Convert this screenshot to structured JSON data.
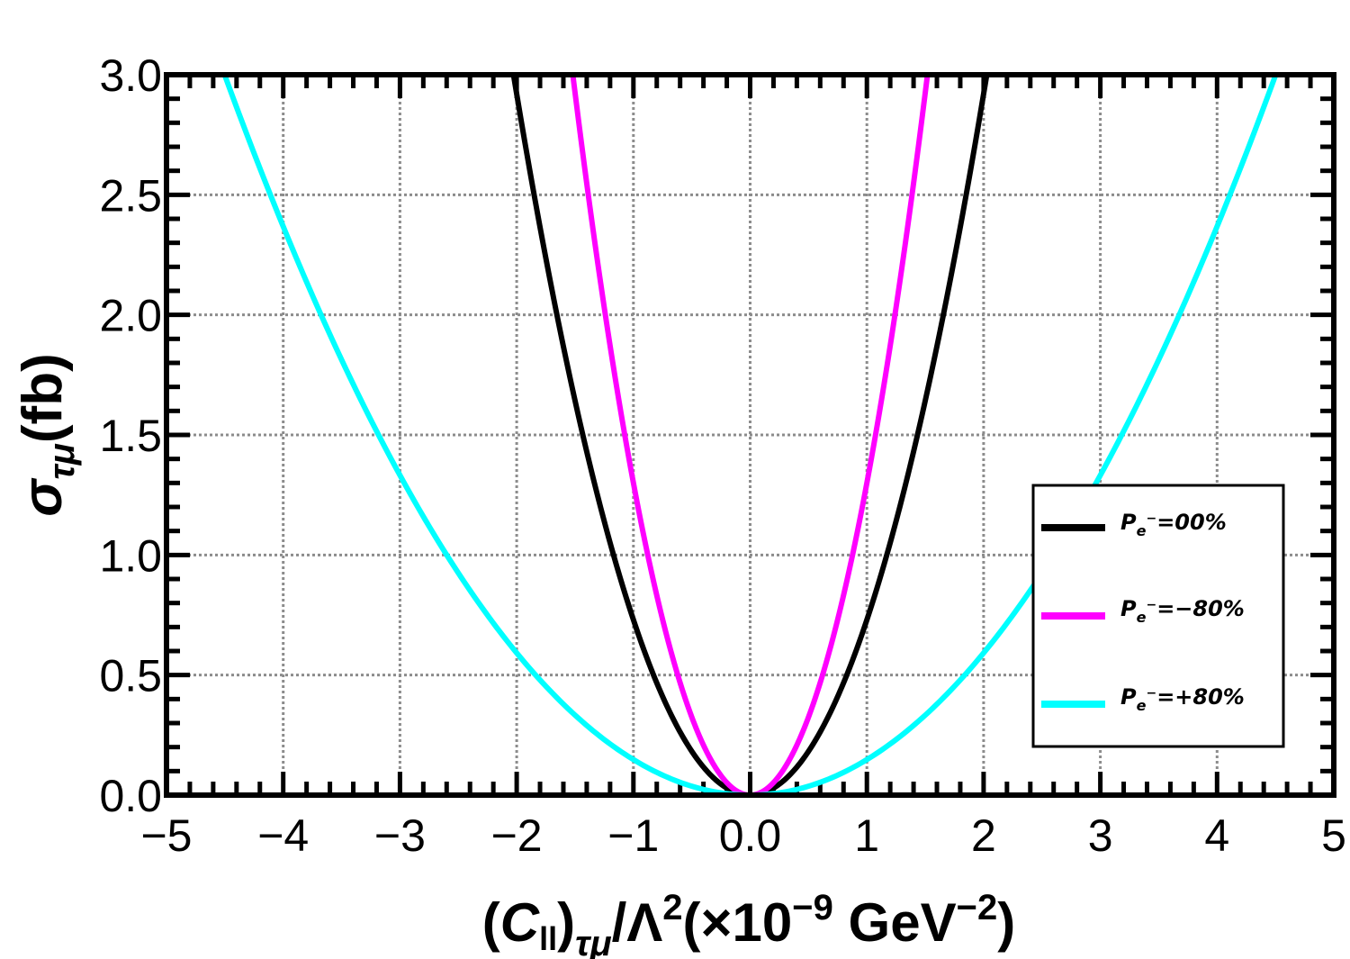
{
  "chart_data": {
    "type": "line",
    "xlim": [
      -5,
      5
    ],
    "ylim": [
      0,
      3.0
    ],
    "x_ticks": [
      -5,
      -4,
      -3,
      -2,
      -1,
      0,
      1,
      2,
      3,
      4,
      5
    ],
    "x_tick_labels": [
      "−5",
      "−4",
      "−3",
      "−2",
      "−1",
      "0.0",
      "1",
      "2",
      "3",
      "4",
      "5"
    ],
    "y_ticks": [
      0,
      0.5,
      1.0,
      1.5,
      2.0,
      2.5,
      3.0
    ],
    "y_tick_labels": [
      "0.0",
      "0.5",
      "1.0",
      "1.5",
      "2.0",
      "2.5",
      "3.0"
    ],
    "grid": true,
    "legend_position": "right",
    "xlabel": "(C_ll)_τμ/Λ^2(×10^−9 GeV^−2)",
    "ylabel": "σ_τμ(fb)",
    "series": [
      {
        "name": "P_e⁻=00%",
        "color": "#000000",
        "model": "a*x^2",
        "a": 0.73,
        "x": [
          -2,
          -1,
          0,
          1,
          2
        ],
        "y": [
          2.92,
          0.73,
          0.0,
          0.73,
          2.92
        ]
      },
      {
        "name": "P_e⁻=−80%",
        "color": "#ff00ff",
        "model": "a*x^2",
        "a": 1.3,
        "x": [
          -1.5,
          -1,
          0,
          1,
          1.5
        ],
        "y": [
          2.93,
          1.3,
          0.0,
          1.3,
          2.93
        ]
      },
      {
        "name": "P_e⁻=+80%",
        "color": "#00ffff",
        "model": "a*x^2",
        "a": 0.148,
        "x": [
          -4.5,
          -4,
          -3,
          -2,
          -1,
          0,
          1,
          2,
          3,
          4,
          4.5
        ],
        "y": [
          3.0,
          2.37,
          1.33,
          0.59,
          0.148,
          0.0,
          0.148,
          0.59,
          1.33,
          2.37,
          3.0
        ]
      }
    ]
  },
  "legend": {
    "items": [
      {
        "prefix": "P",
        "sub": "e",
        "sup": "−",
        "rest": "=00%",
        "color": "#000000"
      },
      {
        "prefix": "P",
        "sub": "e",
        "sup": "−",
        "rest": "=−80%",
        "color": "#ff00ff"
      },
      {
        "prefix": "P",
        "sub": "e",
        "sup": "−",
        "rest": "=+80%",
        "color": "#00ffff"
      }
    ]
  },
  "axes": {
    "xlabel_parts": {
      "open": "(",
      "c": "C",
      "csub": "ll",
      "close": ")",
      "sub2": "τμ",
      "slash": "/Λ",
      "sq": "2",
      "rest": "(×10",
      "exp": "−9",
      "gev": " GeV",
      "exp2": "−2",
      "end": ")"
    },
    "ylabel_parts": {
      "sigma": "σ",
      "sub": "τμ",
      "unit": "(fb)"
    }
  }
}
